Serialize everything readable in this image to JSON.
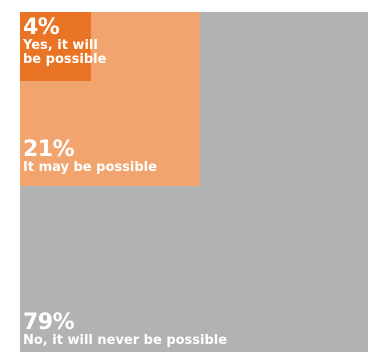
{
  "chart_data": {
    "type": "nested-square",
    "categories": [
      "No, it will never be possible",
      "It may be possible",
      "Yes, it will be possible"
    ],
    "values": [
      79,
      21,
      4
    ],
    "value_labels": [
      "79%",
      "21%",
      "4%"
    ],
    "unit": "%",
    "colors": [
      "#b1b3b2",
      "#f2a46f",
      "#ea7426"
    ]
  }
}
